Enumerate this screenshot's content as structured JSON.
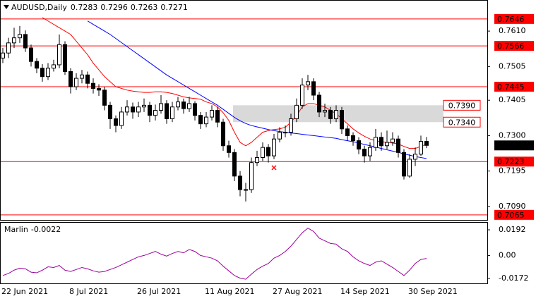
{
  "chart_data": {
    "type": "candlestick",
    "title": "AUDUSD,Daily",
    "header_values": [
      {
        "value": 0.7283,
        "label": "0.7283"
      },
      {
        "value": 0.7296,
        "label": "0.7296"
      },
      {
        "value": 0.7263,
        "label": "0.7263"
      },
      {
        "value": 0.7271,
        "label": "0.7271"
      }
    ],
    "categories": [
      "22 Jun 2021",
      null,
      null,
      null,
      null,
      null,
      null,
      null,
      null,
      null,
      null,
      null,
      "8 Jul 2021",
      null,
      null,
      null,
      null,
      null,
      null,
      null,
      null,
      null,
      null,
      null,
      "26 Jul 2021",
      null,
      null,
      null,
      null,
      null,
      null,
      null,
      null,
      null,
      null,
      null,
      "11 Aug 2021",
      null,
      null,
      null,
      null,
      null,
      null,
      null,
      null,
      null,
      null,
      null,
      "27 Aug 2021",
      null,
      null,
      null,
      null,
      null,
      null,
      null,
      null,
      null,
      null,
      null,
      "14 Sep 2021",
      null,
      null,
      null,
      null,
      null,
      null,
      null,
      null,
      null,
      null,
      null,
      "30 Sep 2021",
      null,
      null,
      null
    ],
    "open": [
      0.753,
      0.7545,
      0.7575,
      0.759,
      0.76,
      0.756,
      0.752,
      0.75,
      0.7475,
      0.75,
      0.751,
      0.757,
      0.749,
      0.7445,
      0.747,
      0.748,
      0.7455,
      0.744,
      0.7435,
      0.739,
      0.735,
      0.733,
      0.737,
      0.7385,
      0.737,
      0.7385,
      0.739,
      0.736,
      0.7375,
      0.7395,
      0.735,
      0.7385,
      0.74,
      0.738,
      0.7395,
      0.736,
      0.7335,
      0.7355,
      0.7375,
      0.734,
      0.727,
      0.725,
      0.718,
      0.714,
      0.714,
      0.722,
      0.7235,
      0.7265,
      0.724,
      0.729,
      0.731,
      0.731,
      0.735,
      0.739,
      0.745,
      0.746,
      0.742,
      0.737,
      0.7375,
      0.735,
      0.7375,
      0.732,
      0.73,
      0.7285,
      0.726,
      0.724,
      0.7265,
      0.7295,
      0.727,
      0.728,
      0.729,
      0.725,
      0.718,
      0.723,
      0.7245,
      0.7283
    ],
    "high": [
      0.756,
      0.759,
      0.762,
      0.7625,
      0.7612,
      0.757,
      0.753,
      0.7512,
      0.7515,
      0.7525,
      0.76,
      0.758,
      0.75,
      0.7485,
      0.7495,
      0.749,
      0.747,
      0.7452,
      0.7445,
      0.74,
      0.736,
      0.7385,
      0.7405,
      0.7398,
      0.74,
      0.741,
      0.74,
      0.7392,
      0.742,
      0.7405,
      0.74,
      0.7415,
      0.741,
      0.7415,
      0.7402,
      0.737,
      0.737,
      0.739,
      0.7385,
      0.735,
      0.7285,
      0.726,
      0.7195,
      0.716,
      0.7235,
      0.7255,
      0.728,
      0.7275,
      0.7305,
      0.7325,
      0.733,
      0.7365,
      0.741,
      0.747,
      0.748,
      0.747,
      0.743,
      0.7395,
      0.7385,
      0.739,
      0.7385,
      0.733,
      0.731,
      0.7295,
      0.727,
      0.728,
      0.732,
      0.731,
      0.7315,
      0.731,
      0.73,
      0.726,
      0.7245,
      0.7265,
      0.73,
      0.7296
    ],
    "low": [
      0.7515,
      0.753,
      0.756,
      0.7575,
      0.7548,
      0.7505,
      0.7485,
      0.746,
      0.7465,
      0.749,
      0.75,
      0.748,
      0.7425,
      0.7435,
      0.7455,
      0.744,
      0.7425,
      0.7418,
      0.7375,
      0.732,
      0.731,
      0.732,
      0.736,
      0.735,
      0.7355,
      0.737,
      0.734,
      0.7345,
      0.7365,
      0.7335,
      0.734,
      0.7375,
      0.7365,
      0.737,
      0.7345,
      0.732,
      0.7325,
      0.7345,
      0.7325,
      0.7255,
      0.7235,
      0.7165,
      0.712,
      0.7105,
      0.713,
      0.721,
      0.7225,
      0.722,
      0.723,
      0.728,
      0.7295,
      0.73,
      0.734,
      0.738,
      0.7435,
      0.7405,
      0.7355,
      0.7355,
      0.7335,
      0.734,
      0.7305,
      0.7285,
      0.727,
      0.7245,
      0.722,
      0.7225,
      0.7255,
      0.7255,
      0.726,
      0.727,
      0.7235,
      0.717,
      0.7175,
      0.721,
      0.724,
      0.7263
    ],
    "close": [
      0.7545,
      0.7575,
      0.759,
      0.76,
      0.756,
      0.752,
      0.75,
      0.7475,
      0.75,
      0.751,
      0.757,
      0.749,
      0.7445,
      0.747,
      0.748,
      0.7455,
      0.744,
      0.7435,
      0.739,
      0.735,
      0.733,
      0.737,
      0.7385,
      0.737,
      0.7385,
      0.739,
      0.736,
      0.7375,
      0.7395,
      0.735,
      0.7385,
      0.74,
      0.738,
      0.7395,
      0.736,
      0.7335,
      0.7355,
      0.7375,
      0.734,
      0.727,
      0.725,
      0.718,
      0.714,
      0.714,
      0.722,
      0.7235,
      0.7265,
      0.724,
      0.729,
      0.731,
      0.731,
      0.735,
      0.739,
      0.745,
      0.746,
      0.742,
      0.737,
      0.7375,
      0.735,
      0.7375,
      0.732,
      0.73,
      0.7285,
      0.726,
      0.724,
      0.7265,
      0.7295,
      0.727,
      0.728,
      0.729,
      0.725,
      0.718,
      0.723,
      0.7245,
      0.7283,
      0.7271
    ],
    "up_color": "#ffffff",
    "down_color": "#000000",
    "moving_averages": [
      {
        "color": "#ff0000",
        "values": [
          null,
          null,
          null,
          null,
          null,
          null,
          null,
          0.765,
          0.764,
          0.763,
          0.762,
          0.761,
          0.76,
          0.758,
          0.756,
          0.754,
          0.7515,
          0.7495,
          0.7475,
          0.746,
          0.7445,
          0.744,
          0.7435,
          0.7432,
          0.743,
          0.7428,
          0.7428,
          0.743,
          0.743,
          0.7428,
          0.7425,
          0.742,
          0.7415,
          0.7412,
          0.741,
          0.7408,
          0.74,
          0.7395,
          0.7385,
          0.7368,
          0.7345,
          0.731,
          0.728,
          0.727,
          0.728,
          0.7295,
          0.731,
          0.7315,
          0.7318,
          0.732,
          0.7325,
          0.734,
          0.736,
          0.7385,
          0.7395,
          0.7395,
          0.739,
          0.7385,
          0.7375,
          0.7365,
          0.735,
          0.7335,
          0.732,
          0.7308,
          0.7298,
          0.729,
          0.7285,
          0.7282,
          0.728,
          0.7278,
          0.7275,
          0.7268,
          0.7262,
          0.7262,
          0.7268,
          0.7275
        ]
      },
      {
        "color": "#0000ff",
        "values": [
          null,
          null,
          null,
          null,
          null,
          null,
          null,
          null,
          null,
          null,
          null,
          null,
          null,
          null,
          null,
          0.764,
          0.763,
          0.762,
          0.761,
          0.76,
          0.7588,
          0.7576,
          0.7564,
          0.7552,
          0.754,
          0.7528,
          0.7516,
          0.7504,
          0.7492,
          0.748,
          0.747,
          0.746,
          0.745,
          0.744,
          0.743,
          0.742,
          0.741,
          0.74,
          0.739,
          0.7378,
          0.7366,
          0.7354,
          0.7344,
          0.7336,
          0.733,
          0.7326,
          0.7322,
          0.7318,
          0.7315,
          0.7312,
          0.731,
          0.7308,
          0.7306,
          0.7304,
          0.7302,
          0.73,
          0.7298,
          0.7296,
          0.7294,
          0.7292,
          0.7288,
          0.7285,
          0.7282,
          0.7278,
          0.7274,
          0.727,
          0.7266,
          0.7262,
          0.7258,
          0.7254,
          0.725,
          0.7246,
          0.7242,
          0.7238,
          0.7235,
          0.7232
        ]
      }
    ],
    "ylim": [
      0.705,
      0.7698
    ],
    "yticks": [
      {
        "value": 0.761,
        "label": "0.7610"
      },
      {
        "value": 0.7505,
        "label": "0.7505"
      },
      {
        "value": 0.7405,
        "label": "0.7405"
      },
      {
        "value": 0.73,
        "label": "0.7300"
      },
      {
        "value": 0.7195,
        "label": "0.7195"
      },
      {
        "value": 0.709,
        "label": "0.7090"
      }
    ],
    "level_color": "#ff0000",
    "levels": [
      {
        "value": 0.7646,
        "label": "0.7646"
      },
      {
        "value": 0.7566,
        "label": "0.7566"
      },
      {
        "value": 0.7445,
        "label": "0.7445"
      },
      {
        "value": 0.7223,
        "label": "0.7223"
      },
      {
        "value": 0.7065,
        "label": "0.7065"
      }
    ],
    "zone_color": "#d9d9d9",
    "zone": [
      {
        "value": 0.739,
        "label": "0.7390"
      },
      {
        "value": 0.734,
        "label": "0.7340"
      }
    ],
    "last_price": {
      "value": 0.7271,
      "label": "0.7271"
    },
    "cross_marker": {
      "category_index": 48,
      "value": 0.7205
    },
    "indicator": {
      "title": "Marlin",
      "current": -0.0022,
      "color": "#9b009b",
      "values": [
        -0.015,
        -0.0135,
        -0.011,
        -0.0095,
        -0.01,
        -0.0125,
        -0.013,
        -0.011,
        -0.0085,
        -0.009,
        -0.0075,
        -0.011,
        -0.012,
        -0.0105,
        -0.009,
        -0.01,
        -0.0115,
        -0.0125,
        -0.012,
        -0.0105,
        -0.009,
        -0.007,
        -0.005,
        -0.003,
        -0.001,
        0.0,
        0.0015,
        0.003,
        0.001,
        -0.0005,
        0.0015,
        0.003,
        0.002,
        0.0045,
        0.003,
        0.0,
        -0.001,
        -0.002,
        -0.004,
        -0.008,
        -0.0115,
        -0.015,
        -0.017,
        -0.0178,
        -0.014,
        -0.0105,
        -0.008,
        -0.006,
        -0.002,
        0.0,
        0.003,
        0.007,
        0.012,
        0.017,
        0.0205,
        0.018,
        0.013,
        0.011,
        0.009,
        0.0085,
        0.005,
        0.003,
        -0.001,
        -0.004,
        -0.006,
        -0.0075,
        -0.005,
        -0.004,
        -0.0065,
        -0.009,
        -0.012,
        -0.015,
        -0.011,
        -0.006,
        -0.003,
        -0.0022
      ],
      "ylim": [
        -0.0209,
        0.0245
      ],
      "yticks": [
        {
          "value": 0.0192,
          "label": "0.0192"
        },
        {
          "value": 0,
          "label": "0.00"
        },
        {
          "value": -0.0172,
          "label": "-0.0172"
        }
      ]
    }
  }
}
